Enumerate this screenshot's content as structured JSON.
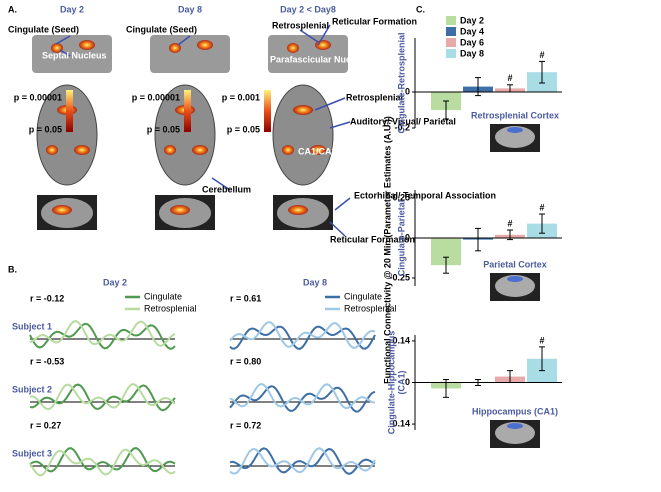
{
  "panel_a": {
    "label": "A.",
    "columns": [
      "Day 2",
      "Day 8",
      "Day 2 < Day8"
    ],
    "scales": [
      {
        "top": "p = 0.00001",
        "bottom": "p = 0.05"
      },
      {
        "top": "p = 0.00001",
        "bottom": "p = 0.05"
      },
      {
        "top": "p = 0.001",
        "bottom": "p = 0.05"
      }
    ],
    "labels": [
      "Cingulate (Seed)",
      "Septal Nucleus",
      "Cingulate (Seed)",
      "Retrosplenial",
      "Reticular Formation",
      "Parafascicular Nucleus",
      "Retrosplenial",
      "Auditory/ Visual/ Parietal",
      "CA1/CA3",
      "Cerebellum",
      "Ectorhinal/ Temporal Association",
      "Reticular Formation"
    ]
  },
  "panel_b": {
    "label": "B.",
    "subjects": [
      "Subject 1",
      "Subject 2",
      "Subject 3"
    ],
    "groups": [
      {
        "title": "Day 2",
        "legend": [
          "Cingulate",
          "Retrosplenial"
        ],
        "r": [
          "r = -0.12",
          "r = -0.53",
          "r = 0.27"
        ]
      },
      {
        "title": "Day 8",
        "legend": [
          "Cingulate",
          "Retrosplenial"
        ],
        "r": [
          "r = 0.61",
          "r = 0.80",
          "r = 0.72"
        ]
      }
    ]
  },
  "panel_c": {
    "label": "C.",
    "y_label": "Functional Connectivity @ 20 Min (Parameter Estimates (A.U.))"
  },
  "chart_data": [
    {
      "type": "bar",
      "y_label": [
        "Cingulate-Retrosplenial"
      ],
      "region": "Retrosplenial Cortex",
      "categories": [
        "Day 2",
        "Day 4",
        "Day 6",
        "Day 8"
      ],
      "colors": [
        "#b9dca0",
        "#3d6fa6",
        "#e8a9a9",
        "#a9dde6"
      ],
      "values": [
        -0.1,
        0.03,
        0.02,
        0.11
      ],
      "errors": [
        0.05,
        0.05,
        0.02,
        0.06
      ],
      "significance": [
        null,
        null,
        "#",
        "#"
      ],
      "ylim": [
        -0.2,
        0.3
      ],
      "yticks": [
        0,
        -0.2
      ]
    },
    {
      "type": "bar",
      "y_label": [
        "Cingulate-Parietal"
      ],
      "region": "Parietal Cortex",
      "categories": [
        "Day 2",
        "Day 4",
        "Day 6",
        "Day 8"
      ],
      "colors": [
        "#b9dca0",
        "#3d6fa6",
        "#e8a9a9",
        "#a9dde6"
      ],
      "values": [
        -0.17,
        -0.01,
        0.02,
        0.09
      ],
      "errors": [
        0.05,
        0.07,
        0.03,
        0.06
      ],
      "significance": [
        null,
        null,
        "#",
        "#"
      ],
      "ylim": [
        -0.3,
        0.3
      ],
      "yticks": [
        0.25,
        0,
        -0.25
      ]
    },
    {
      "type": "bar",
      "y_label": [
        "Cingulate-Hippocampus",
        "(CA1)"
      ],
      "region": "Hippocampus (CA1)",
      "categories": [
        "Day 2",
        "Day 4",
        "Day 6",
        "Day 8"
      ],
      "colors": [
        "#b9dca0",
        "#3d6fa6",
        "#e8a9a9",
        "#a9dde6"
      ],
      "values": [
        -0.02,
        0,
        0.02,
        0.08
      ],
      "errors": [
        0.03,
        0.01,
        0.02,
        0.04
      ],
      "significance": [
        null,
        null,
        null,
        "#"
      ],
      "ylim": [
        -0.16,
        0.16
      ],
      "yticks": [
        0.14,
        0,
        -0.14
      ]
    }
  ]
}
